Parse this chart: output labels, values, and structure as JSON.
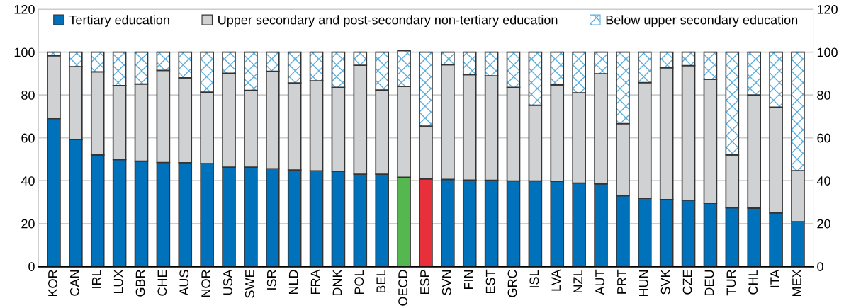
{
  "chart_data": {
    "type": "bar",
    "stacked": true,
    "categories": [
      "KOR",
      "CAN",
      "IRL",
      "LUX",
      "GBR",
      "CHE",
      "AUS",
      "NOR",
      "USA",
      "SWE",
      "ISR",
      "NLD",
      "FRA",
      "DNK",
      "POL",
      "BEL",
      "OECD",
      "ESP",
      "SVN",
      "FIN",
      "EST",
      "GRC",
      "ISL",
      "LVA",
      "NZL",
      "AUT",
      "PRT",
      "HUN",
      "SVK",
      "CZE",
      "DEU",
      "TUR",
      "CHL",
      "ITA",
      "MEX"
    ],
    "series": [
      {
        "name": "Tertiary education",
        "color": "#0072bb",
        "colors": [
          "#0072bb",
          "#0072bb",
          "#0072bb",
          "#0072bb",
          "#0072bb",
          "#0072bb",
          "#0072bb",
          "#0072bb",
          "#0072bb",
          "#0072bb",
          "#0072bb",
          "#0072bb",
          "#0072bb",
          "#0072bb",
          "#0072bb",
          "#0072bb",
          "#55b74f",
          "#e8303a",
          "#0072bb",
          "#0072bb",
          "#0072bb",
          "#0072bb",
          "#0072bb",
          "#0072bb",
          "#0072bb",
          "#0072bb",
          "#0072bb",
          "#0072bb",
          "#0072bb",
          "#0072bb",
          "#0072bb",
          "#0072bb",
          "#0072bb",
          "#0072bb",
          "#0072bb"
        ],
        "values": [
          69.0,
          59.2,
          52.0,
          49.8,
          49.1,
          48.5,
          48.4,
          48.0,
          46.3,
          46.3,
          45.6,
          45.0,
          44.6,
          44.4,
          43.0,
          43.0,
          41.6,
          40.8,
          40.6,
          40.3,
          40.2,
          39.9,
          39.9,
          39.7,
          38.9,
          38.5,
          33.0,
          31.8,
          31.2,
          30.9,
          29.5,
          27.4,
          27.2,
          25.0,
          20.9
        ]
      },
      {
        "name": "Upper secondary and post-secondary non-tertiary education",
        "color": "#d0d1d3",
        "values": [
          29.3,
          34.0,
          38.8,
          34.6,
          36.0,
          43.0,
          39.6,
          33.3,
          43.9,
          35.9,
          45.5,
          40.6,
          42.0,
          39.2,
          50.9,
          39.3,
          42.4,
          24.7,
          53.5,
          49.2,
          48.7,
          43.7,
          35.3,
          45.0,
          42.1,
          51.4,
          33.6,
          54.0,
          61.5,
          62.8,
          57.8,
          24.6,
          52.8,
          49.3,
          23.8
        ]
      },
      {
        "name": "Below upper secondary education",
        "color": "#5aaee0",
        "values": [
          1.7,
          6.8,
          9.2,
          15.6,
          14.9,
          8.5,
          12.0,
          18.7,
          9.8,
          17.8,
          8.9,
          14.4,
          13.4,
          16.4,
          6.1,
          17.7,
          16.6,
          34.5,
          5.9,
          10.5,
          11.1,
          16.4,
          24.8,
          15.3,
          19.0,
          10.1,
          33.4,
          14.2,
          7.3,
          6.3,
          12.7,
          48.0,
          20.0,
          25.7,
          55.3
        ]
      }
    ],
    "ylim": [
      0,
      120
    ],
    "yticks": [
      0,
      20,
      40,
      60,
      80,
      100,
      120
    ],
    "y2lim": [
      0,
      120
    ],
    "y2ticks": [
      0,
      20,
      40,
      60,
      80,
      100,
      120
    ],
    "grid": "y",
    "legend": "top"
  }
}
